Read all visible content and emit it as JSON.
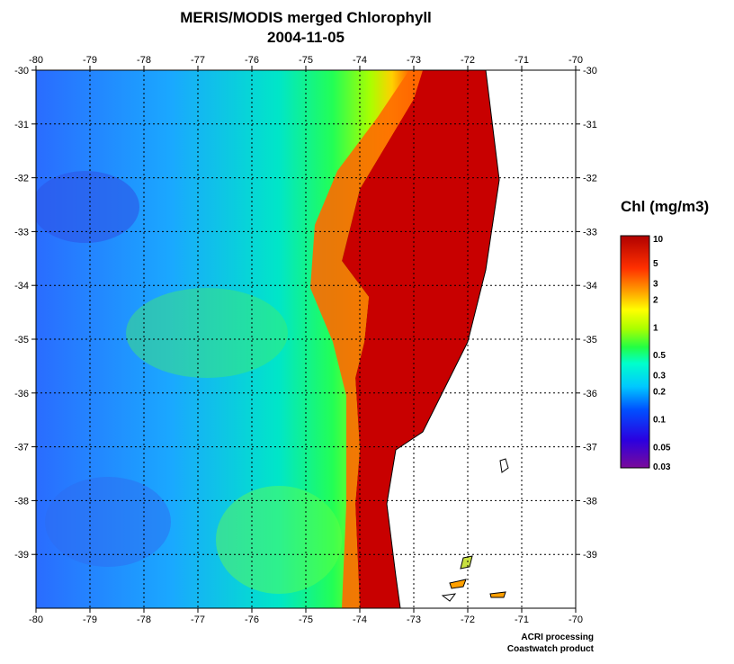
{
  "title": "MERIS/MODIS merged Chlorophyll",
  "date": "2004-11-05",
  "axes": {
    "lon_ticks": [
      "-80",
      "-79",
      "-78",
      "-77",
      "-76",
      "-75",
      "-74",
      "-73",
      "-72",
      "-71",
      "-70"
    ],
    "lat_ticks": [
      "-30",
      "-31",
      "-32",
      "-33",
      "-34",
      "-35",
      "-36",
      "-37",
      "-38",
      "-39"
    ],
    "lon_range": [
      -80,
      -70
    ],
    "lat_range": [
      -40,
      -30
    ],
    "grid": true,
    "grid_style": "dotted"
  },
  "colorbar": {
    "title": "Chl (mg/m3)",
    "scale": "log",
    "range": [
      0.03,
      10
    ],
    "labels": [
      "10",
      "5",
      "3",
      "2",
      "1",
      "0.5",
      "0.3",
      "0.2",
      "0.1",
      "0.05",
      "0.03"
    ],
    "colors": [
      "#7a0a9a",
      "#2b00e0",
      "#0050ff",
      "#00c8ff",
      "#00ffcc",
      "#22ff44",
      "#aaff00",
      "#ffff00",
      "#ffa000",
      "#ff3000",
      "#b00000"
    ]
  },
  "colors": {
    "land": "#ffffff",
    "coastline": "#000000",
    "high_chl": "#c00000",
    "ocean_low": "#2a7fff"
  },
  "credits": [
    "ACRI processing",
    "Coastwatch product"
  ]
}
